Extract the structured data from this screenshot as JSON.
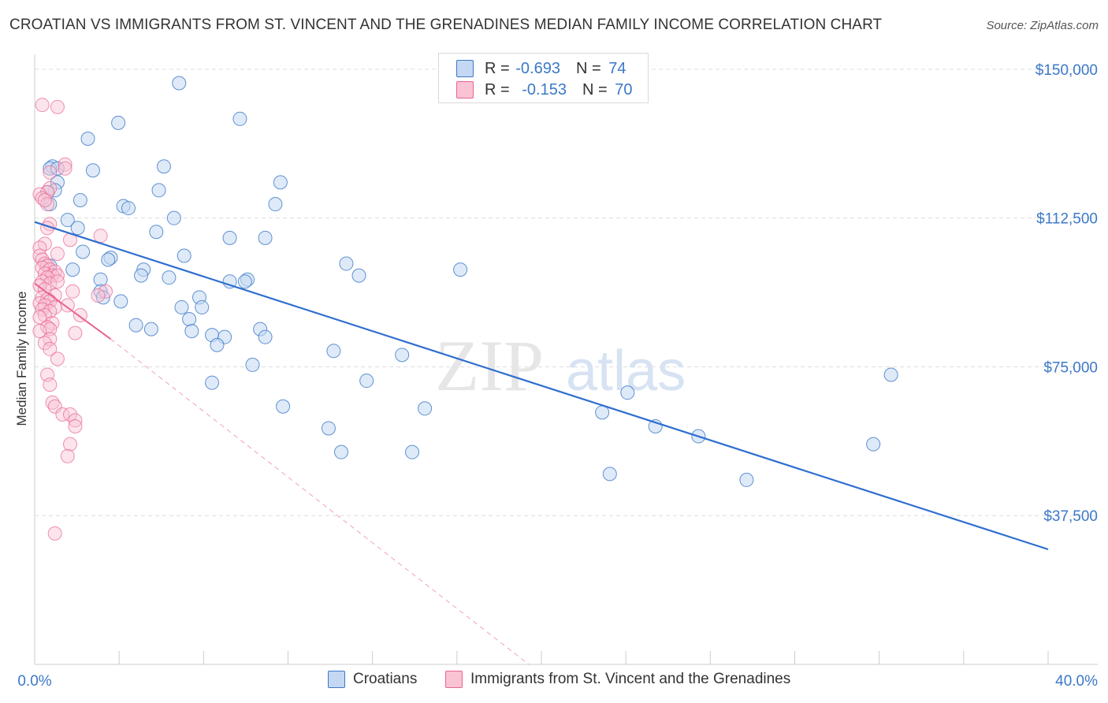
{
  "title": "CROATIAN VS IMMIGRANTS FROM ST. VINCENT AND THE GRENADINES MEDIAN FAMILY INCOME CORRELATION CHART",
  "source": "Source: ZipAtlas.com",
  "watermark": {
    "zip": "ZIP",
    "atlas": "atlas"
  },
  "legend": {
    "rows": [
      {
        "r_label": "R =",
        "r_value": "-0.693",
        "n_label": "N =",
        "n_value": "74"
      },
      {
        "r_label": "R =",
        "r_value": "-0.153",
        "n_label": "N =",
        "n_value": "70"
      }
    ]
  },
  "bottom_legend": {
    "series1": "Croatians",
    "series2": "Immigrants from St. Vincent and the Grenadines"
  },
  "colors": {
    "blue": "#3b78c8",
    "blue_fill": "#c5d8f3",
    "blue_line": "#2f6fd0",
    "pink": "#e8648f",
    "pink_fill": "#f9c3d4",
    "grid": "#dddddd",
    "axis": "#cccccc"
  },
  "chart_data": {
    "type": "scatter",
    "title": "CROATIAN VS IMMIGRANTS FROM ST. VINCENT AND THE GRENADINES MEDIAN FAMILY INCOME CORRELATION CHART",
    "xlabel": "",
    "ylabel": "Median Family Income",
    "xlim": [
      0,
      40
    ],
    "ylim": [
      0,
      153750
    ],
    "x_tick_labels": [
      "0.0%",
      "40.0%"
    ],
    "y_ticks": [
      37500,
      75000,
      112500,
      150000
    ],
    "y_tick_labels": [
      "$37,500",
      "$75,000",
      "$112,500",
      "$150,000"
    ],
    "grid": true,
    "legend_position": "top-center",
    "series": [
      {
        "name": "Croatians",
        "r": -0.693,
        "n": 74,
        "trend": [
          [
            0.0,
            111500
          ],
          [
            40.0,
            29000
          ]
        ],
        "points": [
          [
            5.7,
            146500
          ],
          [
            8.1,
            137500
          ],
          [
            3.3,
            136500
          ],
          [
            2.1,
            132500
          ],
          [
            0.7,
            125500
          ],
          [
            0.6,
            125000
          ],
          [
            5.1,
            125500
          ],
          [
            2.3,
            124500
          ],
          [
            0.9,
            121500
          ],
          [
            9.7,
            121500
          ],
          [
            4.9,
            119500
          ],
          [
            0.8,
            119500
          ],
          [
            1.8,
            117000
          ],
          [
            0.6,
            116000
          ],
          [
            9.5,
            116000
          ],
          [
            3.5,
            115500
          ],
          [
            3.7,
            115000
          ],
          [
            5.5,
            112500
          ],
          [
            1.3,
            112000
          ],
          [
            1.7,
            110000
          ],
          [
            4.8,
            109000
          ],
          [
            7.7,
            107500
          ],
          [
            9.1,
            107500
          ],
          [
            1.9,
            104000
          ],
          [
            5.9,
            103000
          ],
          [
            3.0,
            102500
          ],
          [
            2.9,
            102000
          ],
          [
            12.3,
            101000
          ],
          [
            0.6,
            100500
          ],
          [
            1.5,
            99500
          ],
          [
            4.3,
            99500
          ],
          [
            16.8,
            99500
          ],
          [
            4.2,
            98000
          ],
          [
            12.8,
            98000
          ],
          [
            5.3,
            97500
          ],
          [
            2.6,
            97000
          ],
          [
            8.4,
            97000
          ],
          [
            8.3,
            96500
          ],
          [
            7.7,
            96500
          ],
          [
            2.6,
            94000
          ],
          [
            2.7,
            92500
          ],
          [
            6.5,
            92500
          ],
          [
            3.4,
            91500
          ],
          [
            5.8,
            90000
          ],
          [
            6.6,
            90000
          ],
          [
            6.1,
            87000
          ],
          [
            4.0,
            85500
          ],
          [
            4.6,
            84500
          ],
          [
            8.9,
            84500
          ],
          [
            6.2,
            84000
          ],
          [
            7.0,
            83000
          ],
          [
            7.5,
            82500
          ],
          [
            9.1,
            82500
          ],
          [
            7.2,
            80500
          ],
          [
            11.8,
            79000
          ],
          [
            14.5,
            78000
          ],
          [
            8.6,
            75500
          ],
          [
            33.8,
            73000
          ],
          [
            13.1,
            71500
          ],
          [
            7.0,
            71000
          ],
          [
            23.4,
            68500
          ],
          [
            9.8,
            65000
          ],
          [
            15.4,
            64500
          ],
          [
            22.4,
            63500
          ],
          [
            24.5,
            60000
          ],
          [
            11.6,
            59500
          ],
          [
            26.2,
            57500
          ],
          [
            12.1,
            53500
          ],
          [
            14.9,
            53500
          ],
          [
            33.1,
            55500
          ],
          [
            22.7,
            48000
          ],
          [
            28.1,
            46500
          ],
          [
            0.5,
            119000
          ],
          [
            0.9,
            125000
          ]
        ]
      },
      {
        "name": "Immigrants from St. Vincent and the Grenadines",
        "r": -0.153,
        "n": 70,
        "trend": [
          [
            0.0,
            96000
          ],
          [
            3.0,
            82000
          ]
        ],
        "trend_extension": [
          [
            3.0,
            82000
          ],
          [
            19.5,
            0
          ]
        ],
        "points": [
          [
            0.3,
            141000
          ],
          [
            0.9,
            140500
          ],
          [
            1.2,
            126000
          ],
          [
            1.2,
            125000
          ],
          [
            0.6,
            124000
          ],
          [
            0.6,
            120000
          ],
          [
            0.5,
            119000
          ],
          [
            0.2,
            118500
          ],
          [
            0.3,
            117500
          ],
          [
            0.5,
            116000
          ],
          [
            0.6,
            111000
          ],
          [
            2.6,
            108000
          ],
          [
            1.4,
            107000
          ],
          [
            0.4,
            106000
          ],
          [
            0.2,
            105000
          ],
          [
            0.9,
            103500
          ],
          [
            0.2,
            103000
          ],
          [
            0.3,
            102000
          ],
          [
            0.4,
            101000
          ],
          [
            0.5,
            100500
          ],
          [
            0.3,
            100000
          ],
          [
            0.6,
            99500
          ],
          [
            0.8,
            99000
          ],
          [
            0.4,
            98500
          ],
          [
            0.7,
            98000
          ],
          [
            0.9,
            98000
          ],
          [
            0.5,
            97500
          ],
          [
            0.3,
            96500
          ],
          [
            0.6,
            96000
          ],
          [
            0.2,
            95500
          ],
          [
            0.4,
            94500
          ],
          [
            1.5,
            94000
          ],
          [
            2.8,
            94000
          ],
          [
            0.8,
            93000
          ],
          [
            2.5,
            93000
          ],
          [
            0.3,
            92500
          ],
          [
            0.5,
            92000
          ],
          [
            0.6,
            91500
          ],
          [
            0.2,
            91000
          ],
          [
            0.4,
            90500
          ],
          [
            1.3,
            90500
          ],
          [
            0.8,
            90000
          ],
          [
            0.3,
            89500
          ],
          [
            0.6,
            89000
          ],
          [
            0.4,
            88000
          ],
          [
            1.8,
            88000
          ],
          [
            0.2,
            87500
          ],
          [
            0.7,
            86000
          ],
          [
            0.5,
            85000
          ],
          [
            0.6,
            84500
          ],
          [
            0.2,
            84000
          ],
          [
            1.6,
            83500
          ],
          [
            0.6,
            82000
          ],
          [
            0.4,
            81000
          ],
          [
            0.6,
            79500
          ],
          [
            0.9,
            77000
          ],
          [
            0.5,
            73000
          ],
          [
            0.6,
            70500
          ],
          [
            0.7,
            66000
          ],
          [
            0.8,
            65000
          ],
          [
            1.1,
            63000
          ],
          [
            1.4,
            63000
          ],
          [
            1.6,
            61500
          ],
          [
            1.6,
            60000
          ],
          [
            1.4,
            55500
          ],
          [
            1.3,
            52500
          ],
          [
            0.8,
            33000
          ],
          [
            0.4,
            117000
          ],
          [
            0.9,
            96500
          ],
          [
            0.5,
            110000
          ]
        ]
      }
    ]
  }
}
